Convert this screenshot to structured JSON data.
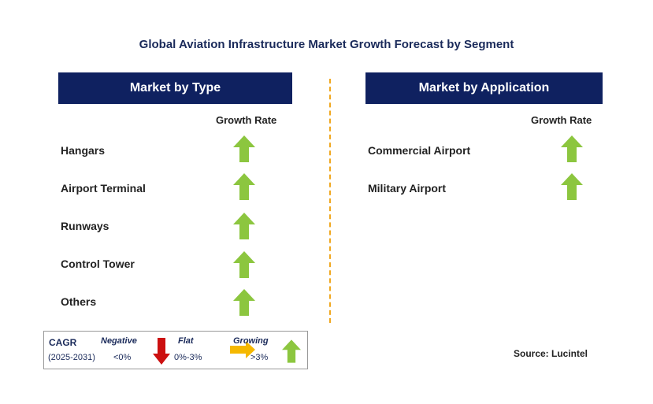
{
  "title": "Global Aviation Infrastructure Market Growth Forecast by Segment",
  "left_panel": {
    "header": "Market by Type",
    "growth_label": "Growth Rate",
    "items": [
      {
        "label": "Hangars",
        "trend": "growing"
      },
      {
        "label": "Airport Terminal",
        "trend": "growing"
      },
      {
        "label": "Runways",
        "trend": "growing"
      },
      {
        "label": "Control Tower",
        "trend": "growing"
      },
      {
        "label": "Others",
        "trend": "growing"
      }
    ]
  },
  "right_panel": {
    "header": "Market by Application",
    "growth_label": "Growth Rate",
    "items": [
      {
        "label": "Commercial Airport",
        "trend": "growing"
      },
      {
        "label": "Military Airport",
        "trend": "growing"
      }
    ]
  },
  "legend": {
    "cagr_label": "CAGR",
    "period": "(2025-2031)",
    "negative_label": "Negative",
    "negative_range": "<0%",
    "flat_label": "Flat",
    "flat_range": "0%-3%",
    "growing_label": "Growing",
    "growing_range": ">3%"
  },
  "source": "Source: Lucintel",
  "colors": {
    "header_bg": "#0f2160",
    "growing": "#8cc63f",
    "negative": "#cc1010",
    "flat": "#f5b800",
    "divider": "#f0a820"
  },
  "icons": {
    "growing": "green-up-arrow-icon",
    "negative": "red-down-arrow-icon",
    "flat": "yellow-right-arrow-icon"
  }
}
